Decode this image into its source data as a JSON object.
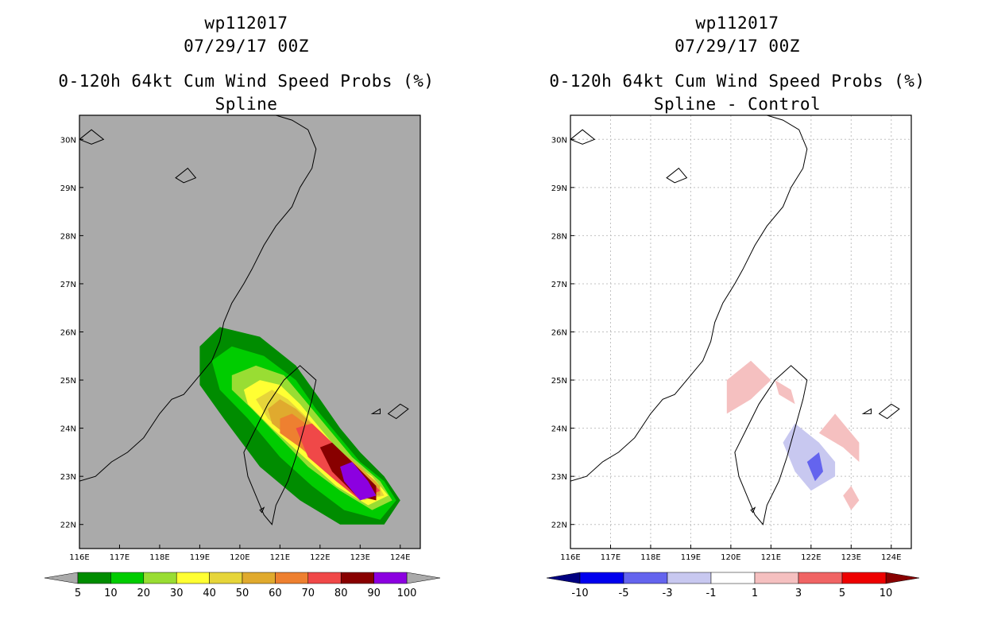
{
  "chart_data": [
    {
      "type": "heatmap",
      "storm_id": "wp112017",
      "datetime": "07/29/17 00Z",
      "title": "0-120h 64kt Cum Wind Speed Probs (%)",
      "subtitle": "Spline",
      "xlabel": "",
      "ylabel": "",
      "xlim": [
        116,
        124.5
      ],
      "ylim": [
        21.5,
        30.5
      ],
      "x_ticks": [
        "116E",
        "117E",
        "118E",
        "119E",
        "120E",
        "121E",
        "122E",
        "123E",
        "124E"
      ],
      "y_ticks": [
        "22N",
        "23N",
        "24N",
        "25N",
        "26N",
        "27N",
        "28N",
        "29N",
        "30N"
      ],
      "grid": false,
      "background": "#aaaaaa",
      "colorbar": {
        "labels": [
          "5",
          "10",
          "20",
          "30",
          "40",
          "50",
          "60",
          "70",
          "80",
          "90",
          "100"
        ],
        "colors": [
          "#008c00",
          "#00cc00",
          "#99dd33",
          "#ffff33",
          "#e6d53a",
          "#e0aa2e",
          "#ee8030",
          "#f04848",
          "#880000",
          "#8c00e0"
        ],
        "under": "#aaaaaa",
        "over": "#aaaaaa"
      },
      "contours": [
        {
          "level": 5,
          "points": [
            [
              119.0,
              25.7
            ],
            [
              119.5,
              26.1
            ],
            [
              120.5,
              25.9
            ],
            [
              121.4,
              25.3
            ],
            [
              122.0,
              24.6
            ],
            [
              122.5,
              24.0
            ],
            [
              123.0,
              23.5
            ],
            [
              123.6,
              23.0
            ],
            [
              124.0,
              22.5
            ],
            [
              123.6,
              22.0
            ],
            [
              122.5,
              22.0
            ],
            [
              121.5,
              22.5
            ],
            [
              120.5,
              23.2
            ],
            [
              119.6,
              24.2
            ],
            [
              119.0,
              24.9
            ]
          ]
        },
        {
          "level": 10,
          "points": [
            [
              119.3,
              25.4
            ],
            [
              119.8,
              25.7
            ],
            [
              120.6,
              25.5
            ],
            [
              121.4,
              25.0
            ],
            [
              121.9,
              24.4
            ],
            [
              122.4,
              23.9
            ],
            [
              123.0,
              23.3
            ],
            [
              123.6,
              22.9
            ],
            [
              123.9,
              22.5
            ],
            [
              123.5,
              22.1
            ],
            [
              122.6,
              22.3
            ],
            [
              121.8,
              22.8
            ],
            [
              121.0,
              23.4
            ],
            [
              120.2,
              24.2
            ],
            [
              119.5,
              24.8
            ]
          ]
        },
        {
          "level": 20,
          "points": [
            [
              119.8,
              25.1
            ],
            [
              120.4,
              25.3
            ],
            [
              121.1,
              25.1
            ],
            [
              121.7,
              24.5
            ],
            [
              122.2,
              24.0
            ],
            [
              122.8,
              23.4
            ],
            [
              123.5,
              22.9
            ],
            [
              123.8,
              22.5
            ],
            [
              123.3,
              22.3
            ],
            [
              122.5,
              22.7
            ],
            [
              121.7,
              23.2
            ],
            [
              121.0,
              23.8
            ],
            [
              120.3,
              24.4
            ],
            [
              119.8,
              24.8
            ]
          ]
        },
        {
          "level": 30,
          "points": [
            [
              120.1,
              24.8
            ],
            [
              120.5,
              25.0
            ],
            [
              121.0,
              24.9
            ],
            [
              121.5,
              24.5
            ],
            [
              122.0,
              24.0
            ],
            [
              122.6,
              23.4
            ],
            [
              123.3,
              23.0
            ],
            [
              123.7,
              22.6
            ],
            [
              123.2,
              22.4
            ],
            [
              122.4,
              22.8
            ],
            [
              121.6,
              23.4
            ],
            [
              120.8,
              24.0
            ],
            [
              120.2,
              24.5
            ]
          ]
        },
        {
          "level": 40,
          "points": [
            [
              120.4,
              24.6
            ],
            [
              120.8,
              24.8
            ],
            [
              121.2,
              24.6
            ],
            [
              121.7,
              24.2
            ],
            [
              122.2,
              23.7
            ],
            [
              122.8,
              23.3
            ],
            [
              123.4,
              22.9
            ],
            [
              123.6,
              22.6
            ],
            [
              123.1,
              22.5
            ],
            [
              122.4,
              22.9
            ],
            [
              121.5,
              23.6
            ],
            [
              120.7,
              24.2
            ]
          ]
        },
        {
          "level": 50,
          "points": [
            [
              120.7,
              24.4
            ],
            [
              121.0,
              24.6
            ],
            [
              121.4,
              24.4
            ],
            [
              121.9,
              24.0
            ],
            [
              122.4,
              23.6
            ],
            [
              123.0,
              23.2
            ],
            [
              123.5,
              22.8
            ],
            [
              123.5,
              22.6
            ],
            [
              123.0,
              22.6
            ],
            [
              122.3,
              23.0
            ],
            [
              121.4,
              23.7
            ],
            [
              120.8,
              24.1
            ]
          ]
        },
        {
          "level": 60,
          "points": [
            [
              121.0,
              24.2
            ],
            [
              121.3,
              24.3
            ],
            [
              121.8,
              24.0
            ],
            [
              122.4,
              23.6
            ],
            [
              123.0,
              23.1
            ],
            [
              123.5,
              22.7
            ],
            [
              123.0,
              22.6
            ],
            [
              122.3,
              23.1
            ],
            [
              121.5,
              23.6
            ],
            [
              121.0,
              23.9
            ]
          ]
        },
        {
          "level": 70,
          "points": [
            [
              121.4,
              24.0
            ],
            [
              121.8,
              24.1
            ],
            [
              122.3,
              23.7
            ],
            [
              122.9,
              23.2
            ],
            [
              123.5,
              22.7
            ],
            [
              123.0,
              22.5
            ],
            [
              122.4,
              22.9
            ],
            [
              121.7,
              23.4
            ]
          ]
        },
        {
          "level": 80,
          "points": [
            [
              122.0,
              23.6
            ],
            [
              122.3,
              23.7
            ],
            [
              122.8,
              23.3
            ],
            [
              123.4,
              22.8
            ],
            [
              123.4,
              22.5
            ],
            [
              122.9,
              22.6
            ],
            [
              122.3,
              23.1
            ]
          ]
        },
        {
          "level": 90,
          "points": [
            [
              122.5,
              23.2
            ],
            [
              122.8,
              23.3
            ],
            [
              123.2,
              22.9
            ],
            [
              123.4,
              22.6
            ],
            [
              123.0,
              22.5
            ],
            [
              122.6,
              22.9
            ]
          ]
        }
      ]
    },
    {
      "type": "heatmap",
      "storm_id": "wp112017",
      "datetime": "07/29/17 00Z",
      "title": "0-120h 64kt Cum Wind Speed Probs (%)",
      "subtitle": "Spline - Control",
      "xlabel": "",
      "ylabel": "",
      "xlim": [
        116,
        124.5
      ],
      "ylim": [
        21.5,
        30.5
      ],
      "x_ticks": [
        "116E",
        "117E",
        "118E",
        "119E",
        "120E",
        "121E",
        "122E",
        "123E",
        "124E"
      ],
      "y_ticks": [
        "22N",
        "23N",
        "24N",
        "25N",
        "26N",
        "27N",
        "28N",
        "29N",
        "30N"
      ],
      "grid": true,
      "background": "#ffffff",
      "colorbar": {
        "labels": [
          "-10",
          "-5",
          "-3",
          "-1",
          "1",
          "3",
          "5",
          "10"
        ],
        "colors": [
          "#0000ee",
          "#6464ee",
          "#c8c8f0",
          "#ffffff",
          "#f5c0c0",
          "#f06464",
          "#ee0000"
        ],
        "under": "#000080",
        "over": "#880000"
      },
      "contours": [
        {
          "level": 1,
          "points": [
            [
              119.9,
              25.0
            ],
            [
              120.5,
              25.4
            ],
            [
              121.0,
              25.0
            ],
            [
              120.5,
              24.6
            ],
            [
              119.9,
              24.3
            ]
          ]
        },
        {
          "level": 1,
          "points": [
            [
              121.1,
              25.0
            ],
            [
              121.5,
              24.8
            ],
            [
              121.6,
              24.5
            ],
            [
              121.2,
              24.7
            ]
          ]
        },
        {
          "level": 1,
          "points": [
            [
              122.2,
              23.9
            ],
            [
              122.6,
              24.3
            ],
            [
              123.2,
              23.7
            ],
            [
              123.2,
              23.3
            ],
            [
              122.8,
              23.6
            ]
          ]
        },
        {
          "level": 1,
          "points": [
            [
              122.8,
              22.6
            ],
            [
              123.0,
              22.8
            ],
            [
              123.2,
              22.5
            ],
            [
              123.0,
              22.3
            ]
          ]
        },
        {
          "level": -1,
          "points": [
            [
              121.3,
              23.7
            ],
            [
              121.6,
              24.1
            ],
            [
              122.2,
              23.7
            ],
            [
              122.6,
              23.3
            ],
            [
              122.6,
              23.0
            ],
            [
              122.0,
              22.7
            ],
            [
              121.6,
              23.1
            ]
          ]
        },
        {
          "level": -3,
          "points": [
            [
              121.9,
              23.3
            ],
            [
              122.2,
              23.5
            ],
            [
              122.3,
              23.1
            ],
            [
              122.1,
              22.9
            ]
          ]
        }
      ]
    }
  ]
}
